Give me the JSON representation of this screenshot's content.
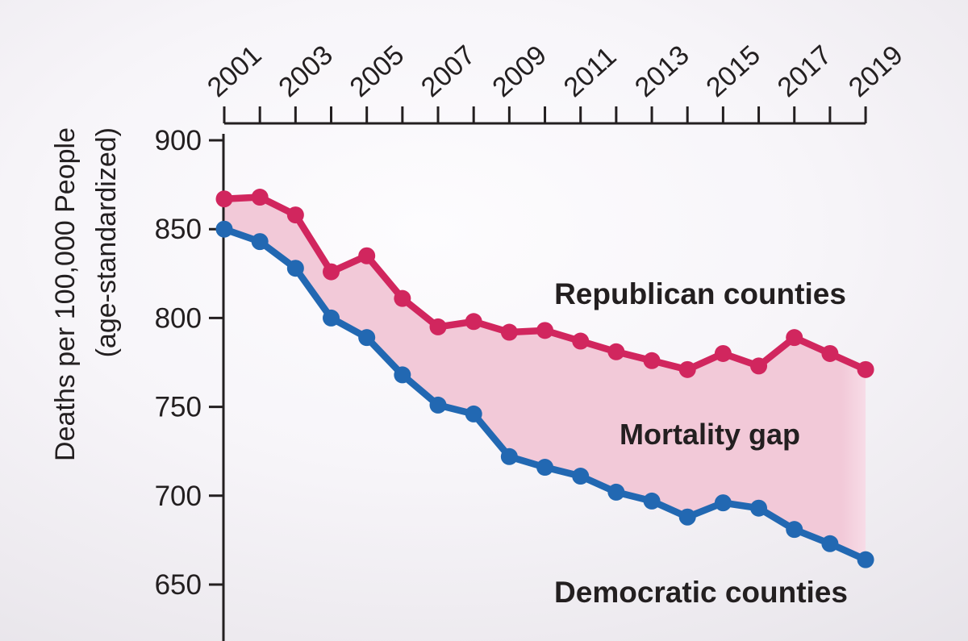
{
  "chart_data": {
    "type": "line",
    "x": [
      2001,
      2002,
      2003,
      2004,
      2005,
      2006,
      2007,
      2008,
      2009,
      2010,
      2011,
      2012,
      2013,
      2014,
      2015,
      2016,
      2017,
      2018,
      2019
    ],
    "series": [
      {
        "name": "Republican counties",
        "color": "#d1265e",
        "values": [
          867,
          868,
          858,
          826,
          835,
          811,
          795,
          798,
          792,
          793,
          787,
          781,
          776,
          771,
          780,
          773,
          789,
          780,
          771
        ]
      },
      {
        "name": "Democratic counties",
        "color": "#2268b2",
        "values": [
          850,
          843,
          828,
          800,
          789,
          768,
          751,
          746,
          722,
          716,
          711,
          702,
          697,
          688,
          696,
          693,
          681,
          673,
          664
        ]
      }
    ],
    "gap_label": "Mortality gap",
    "gap_fill_color": "#f2c9d8",
    "gap_fill_fade_color": "#f7dce7",
    "ylabel_line1": "Deaths per 100,000 People",
    "ylabel_line2": "(age-standardized)",
    "yticks": [
      900,
      850,
      800,
      750,
      700,
      650
    ],
    "ylim": [
      650,
      900
    ],
    "xtick_label_years": [
      2001,
      2003,
      2005,
      2007,
      2009,
      2011,
      2013,
      2015,
      2017,
      2019
    ],
    "grid": false,
    "legend_position": "inline-annotations",
    "axis_color": "#231f20",
    "label_text_color": "#231f20"
  }
}
